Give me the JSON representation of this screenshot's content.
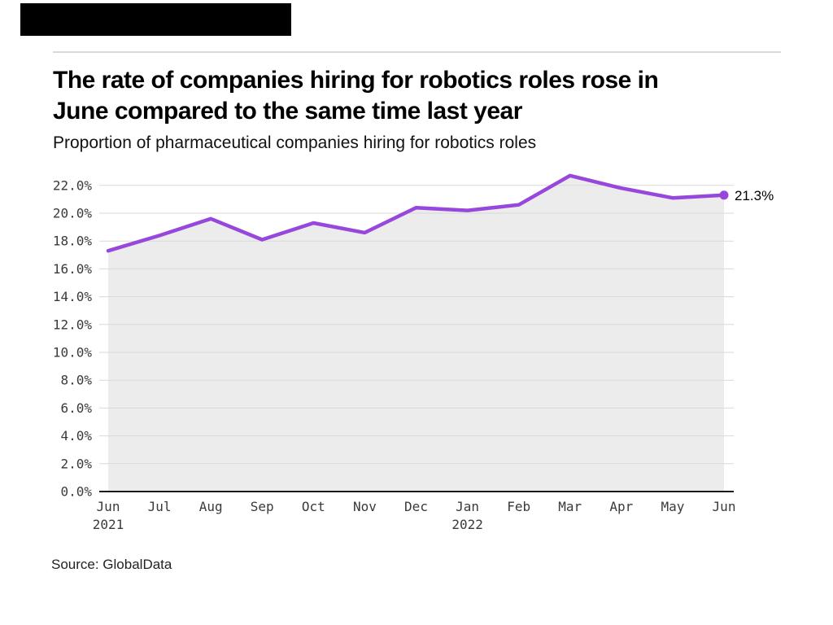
{
  "header": {
    "title_lines": [
      "The rate of companies hiring for robotics roles rose in",
      "June compared to the same time last year"
    ],
    "subtitle": "Proportion of pharmaceutical companies hiring for robotics roles"
  },
  "source": "Source: GlobalData",
  "chart_data": {
    "type": "line",
    "title": "The rate of companies hiring for robotics roles rose in June compared to the same time last year",
    "subtitle": "Proportion of pharmaceutical companies hiring for robotics roles",
    "categories": [
      "Jun 2021",
      "Jul 2021",
      "Aug 2021",
      "Sep 2021",
      "Oct 2021",
      "Nov 2021",
      "Dec 2021",
      "Jan 2022",
      "Feb 2022",
      "Mar 2022",
      "Apr 2022",
      "May 2022",
      "Jun 2022"
    ],
    "x_ticks": [
      {
        "label": "Jun",
        "sub": "2021"
      },
      {
        "label": "Jul"
      },
      {
        "label": "Aug"
      },
      {
        "label": "Sep"
      },
      {
        "label": "Oct"
      },
      {
        "label": "Nov"
      },
      {
        "label": "Dec"
      },
      {
        "label": "Jan",
        "sub": "2022"
      },
      {
        "label": "Feb"
      },
      {
        "label": "Mar"
      },
      {
        "label": "Apr"
      },
      {
        "label": "May"
      },
      {
        "label": "Jun"
      }
    ],
    "series": [
      {
        "name": "Proportion of pharmaceutical companies hiring for robotics roles",
        "values": [
          17.3,
          18.4,
          19.6,
          18.1,
          19.3,
          18.6,
          20.4,
          20.2,
          20.6,
          22.7,
          21.8,
          21.1,
          21.3
        ]
      }
    ],
    "end_label": "21.3%",
    "ylim": [
      0,
      22
    ],
    "y_tick_step": 2,
    "y_tick_labels": [
      "0.0%",
      "2.0%",
      "4.0%",
      "6.0%",
      "8.0%",
      "10.0%",
      "12.0%",
      "14.0%",
      "16.0%",
      "18.0%",
      "20.0%",
      "22.0%"
    ],
    "grid": true,
    "legend": "none",
    "colors": {
      "line": "#9747db",
      "area_fill": "#ececec",
      "grid": "#d9d9d9",
      "axis": "#1a1a1a",
      "tick_text": "#3a3a3a"
    }
  }
}
